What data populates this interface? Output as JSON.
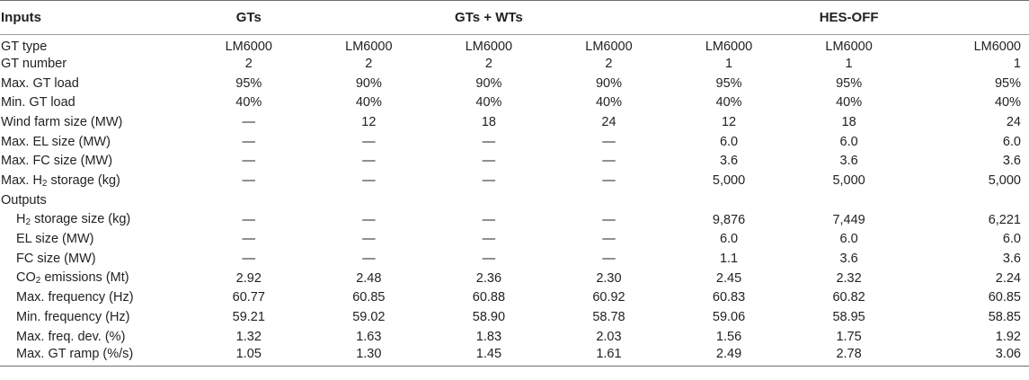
{
  "headers": {
    "inputs": "Inputs",
    "g1": "GTs",
    "g2": "GTs + WTs",
    "g3": "HES-OFF"
  },
  "rows": [
    {
      "label": "GT type",
      "indent": false,
      "values": [
        "LM6000",
        "LM6000",
        "LM6000",
        "LM6000",
        "LM6000",
        "LM6000",
        "LM6000"
      ]
    },
    {
      "label": "GT number",
      "indent": false,
      "values": [
        "2",
        "2",
        "2",
        "2",
        "1",
        "1",
        "1"
      ]
    },
    {
      "label": "Max. GT load",
      "indent": false,
      "values": [
        "95%",
        "90%",
        "90%",
        "90%",
        "95%",
        "95%",
        "95%"
      ]
    },
    {
      "label": "Min. GT load",
      "indent": false,
      "values": [
        "40%",
        "40%",
        "40%",
        "40%",
        "40%",
        "40%",
        "40%"
      ]
    },
    {
      "label": "Wind farm size (MW)",
      "indent": false,
      "values": [
        "—",
        "12",
        "18",
        "24",
        "12",
        "18",
        "24"
      ]
    },
    {
      "label": "Max. EL size (MW)",
      "indent": false,
      "values": [
        "—",
        "—",
        "—",
        "—",
        "6.0",
        "6.0",
        "6.0"
      ]
    },
    {
      "label": "Max. FC size (MW)",
      "indent": false,
      "values": [
        "—",
        "—",
        "—",
        "—",
        "3.6",
        "3.6",
        "3.6"
      ]
    },
    {
      "label_pre": "Max. H",
      "label_sub": "2",
      "label_post": " storage (kg)",
      "indent": false,
      "values": [
        "—",
        "—",
        "—",
        "—",
        "5,000",
        "5,000",
        "5,000"
      ]
    },
    {
      "label": "Outputs",
      "indent": false,
      "values": [
        "",
        "",
        "",
        "",
        "",
        "",
        ""
      ]
    },
    {
      "label_pre": "H",
      "label_sub": "2",
      "label_post": " storage size (kg)",
      "indent": true,
      "values": [
        "—",
        "—",
        "—",
        "—",
        "9,876",
        "7,449",
        "6,221"
      ]
    },
    {
      "label": "EL size (MW)",
      "indent": true,
      "values": [
        "—",
        "—",
        "—",
        "—",
        "6.0",
        "6.0",
        "6.0"
      ]
    },
    {
      "label": "FC size (MW)",
      "indent": true,
      "values": [
        "—",
        "—",
        "—",
        "—",
        "1.1",
        "3.6",
        "3.6"
      ]
    },
    {
      "label_pre": "CO",
      "label_sub": "2",
      "label_post": " emissions (Mt)",
      "indent": true,
      "values": [
        "2.92",
        "2.48",
        "2.36",
        "2.30",
        "2.45",
        "2.32",
        "2.24"
      ]
    },
    {
      "label": "Max. frequency (Hz)",
      "indent": true,
      "values": [
        "60.77",
        "60.85",
        "60.88",
        "60.92",
        "60.83",
        "60.82",
        "60.85"
      ]
    },
    {
      "label": "Min. frequency (Hz)",
      "indent": true,
      "values": [
        "59.21",
        "59.02",
        "58.90",
        "58.78",
        "59.06",
        "58.95",
        "58.85"
      ]
    },
    {
      "label": "Max. freq. dev. (%)",
      "indent": true,
      "values": [
        "1.32",
        "1.63",
        "1.83",
        "2.03",
        "1.56",
        "1.75",
        "1.92"
      ]
    },
    {
      "label": "Max. GT ramp (%/s)",
      "indent": true,
      "values": [
        "1.05",
        "1.30",
        "1.45",
        "1.61",
        "2.49",
        "2.78",
        "3.06"
      ]
    }
  ]
}
